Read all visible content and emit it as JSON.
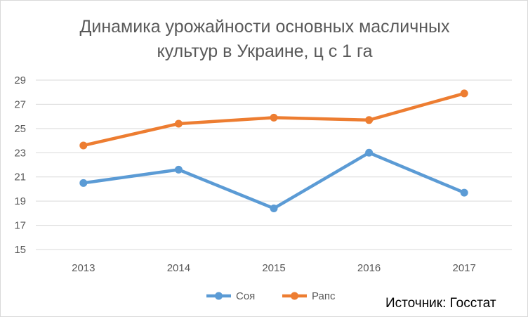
{
  "chart_data": {
    "type": "line",
    "title": [
      "Динамика урожайности основных масличных",
      "культур в Украине, ц с 1 га"
    ],
    "categories": [
      "2013",
      "2014",
      "2015",
      "2016",
      "2017"
    ],
    "series": [
      {
        "name": "Соя",
        "color": "#5b9bd5",
        "values": [
          20.5,
          21.6,
          18.4,
          23.0,
          19.7
        ]
      },
      {
        "name": "Рапс",
        "color": "#ed7d31",
        "values": [
          23.6,
          25.4,
          25.9,
          25.7,
          27.9
        ]
      }
    ],
    "ylim": [
      15,
      29
    ],
    "yticks": [
      "15",
      "17",
      "19",
      "21",
      "23",
      "25",
      "27",
      "29"
    ],
    "grid": true,
    "legend_position": "bottom",
    "source_note": "Источник: Госстат"
  }
}
